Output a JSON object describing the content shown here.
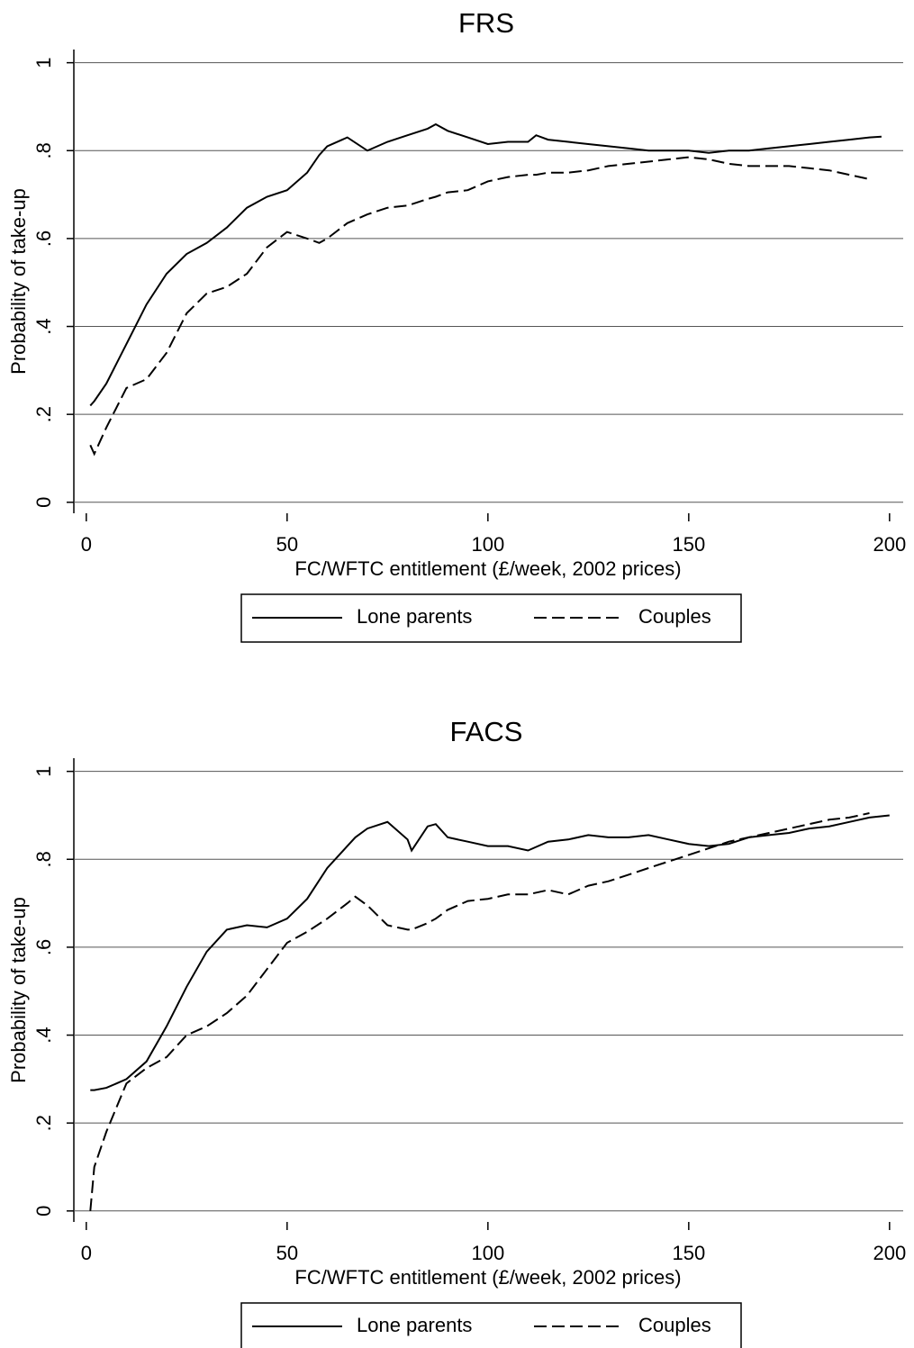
{
  "chart_data": [
    {
      "type": "line",
      "title": "FRS",
      "x_label": "FC/WFTC entitlement (£/week, 2002 prices)",
      "y_label": "Probability of take-up",
      "x": [
        1,
        2,
        5,
        10,
        15,
        20,
        25,
        30,
        35,
        40,
        45,
        50,
        55,
        58,
        60,
        65,
        70,
        75,
        80,
        85,
        87,
        90,
        95,
        100,
        105,
        110,
        112,
        115,
        120,
        125,
        130,
        135,
        140,
        145,
        150,
        155,
        160,
        165,
        170,
        175,
        180,
        185,
        190,
        195,
        198
      ],
      "series": [
        {
          "name": "Lone parents",
          "color": "#000000",
          "line_style": "solid",
          "values": [
            0.22,
            0.23,
            0.27,
            0.36,
            0.45,
            0.52,
            0.565,
            0.59,
            0.625,
            0.67,
            0.695,
            0.71,
            0.75,
            0.79,
            0.81,
            0.83,
            0.8,
            0.82,
            0.835,
            0.85,
            0.86,
            0.845,
            0.83,
            0.815,
            0.82,
            0.82,
            0.835,
            0.825,
            0.82,
            0.815,
            0.81,
            0.805,
            0.8,
            0.8,
            0.8,
            0.795,
            0.8,
            0.8,
            0.805,
            0.81,
            0.815,
            0.82,
            0.825,
            0.83,
            0.832
          ]
        },
        {
          "name": "Couples",
          "color": "#000000",
          "line_style": "dashed",
          "values": [
            0.13,
            0.11,
            0.17,
            0.26,
            0.28,
            0.34,
            0.43,
            0.475,
            0.49,
            0.52,
            0.58,
            0.615,
            0.6,
            0.59,
            0.6,
            0.635,
            0.655,
            0.67,
            0.675,
            0.69,
            0.695,
            0.705,
            0.71,
            0.73,
            0.74,
            0.745,
            0.745,
            0.75,
            0.75,
            0.755,
            0.765,
            0.77,
            0.775,
            0.78,
            0.785,
            0.78,
            0.77,
            0.765,
            0.765,
            0.765,
            0.76,
            0.755,
            0.745,
            0.735,
            null
          ]
        }
      ],
      "xlim": [
        -3.1,
        203.4
      ],
      "xticks": [
        0,
        50,
        100,
        150,
        200
      ],
      "ylim": [
        -0.025,
        1.03
      ],
      "yticks": [
        0,
        {
          "value": 0.2,
          "label": ".2"
        },
        {
          "value": 0.4,
          "label": ".4"
        },
        {
          "value": 0.6,
          "label": ".6"
        },
        {
          "value": 0.8,
          "label": ".8"
        },
        1
      ],
      "grid": true,
      "legend": "bottom"
    },
    {
      "type": "line",
      "title": "FACS",
      "x_label": "FC/WFTC entitlement (£/week, 2002 prices)",
      "y_label": "Probability of take-up",
      "x": [
        1,
        2,
        5,
        10,
        15,
        20,
        25,
        30,
        35,
        40,
        45,
        50,
        55,
        60,
        65,
        67,
        70,
        75,
        80,
        81,
        85,
        87,
        90,
        95,
        100,
        105,
        110,
        115,
        120,
        125,
        130,
        135,
        140,
        145,
        150,
        155,
        160,
        165,
        170,
        175,
        180,
        185,
        190,
        195,
        200
      ],
      "series": [
        {
          "name": "Lone parents",
          "color": "#000000",
          "line_style": "solid",
          "values": [
            0.275,
            0.275,
            0.28,
            0.3,
            0.34,
            0.42,
            0.51,
            0.59,
            0.64,
            0.65,
            0.645,
            0.665,
            0.71,
            0.78,
            0.83,
            0.85,
            0.87,
            0.885,
            0.845,
            0.82,
            0.875,
            0.88,
            0.85,
            0.84,
            0.83,
            0.83,
            0.82,
            0.84,
            0.845,
            0.855,
            0.85,
            0.85,
            0.855,
            0.845,
            0.835,
            0.83,
            0.835,
            0.85,
            0.855,
            0.86,
            0.87,
            0.875,
            0.885,
            0.895,
            0.9
          ]
        },
        {
          "name": "Couples",
          "color": "#000000",
          "line_style": "dashed",
          "values": [
            0.0,
            0.1,
            0.18,
            0.29,
            0.325,
            0.35,
            0.4,
            0.42,
            0.45,
            0.49,
            0.55,
            0.61,
            0.635,
            0.665,
            0.7,
            0.715,
            0.695,
            0.65,
            0.64,
            0.64,
            0.655,
            0.665,
            0.685,
            0.705,
            0.71,
            0.72,
            0.72,
            0.73,
            0.72,
            0.74,
            0.75,
            0.765,
            0.78,
            0.795,
            0.81,
            0.825,
            0.84,
            0.85,
            0.86,
            0.87,
            0.88,
            0.89,
            0.895,
            0.905,
            null
          ]
        }
      ],
      "xlim": [
        -3.1,
        203.4
      ],
      "xticks": [
        0,
        50,
        100,
        150,
        200
      ],
      "ylim": [
        -0.025,
        1.03
      ],
      "yticks": [
        0,
        {
          "value": 0.2,
          "label": ".2"
        },
        {
          "value": 0.4,
          "label": ".4"
        },
        {
          "value": 0.6,
          "label": ".6"
        },
        {
          "value": 0.8,
          "label": ".8"
        },
        1
      ],
      "grid": true,
      "legend": "bottom"
    }
  ]
}
